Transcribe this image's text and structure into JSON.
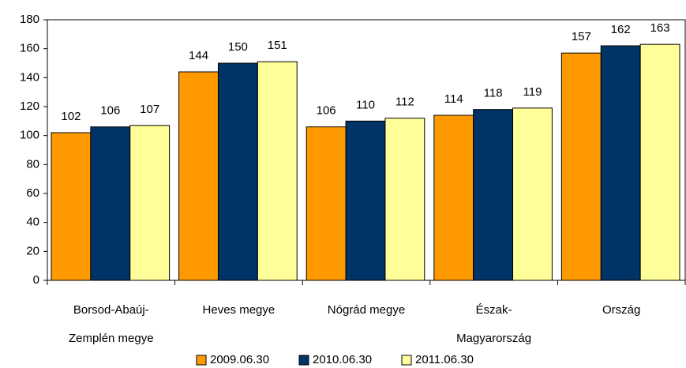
{
  "chart_data": {
    "type": "bar",
    "categories": [
      "Borsod-Abaúj-Zemplén megye",
      "Heves megye",
      "Nógrád megye",
      "Észak-Magyarország",
      "Ország"
    ],
    "series": [
      {
        "name": "2009.06.30",
        "color": "#ff9900",
        "values": [
          102,
          144,
          106,
          114,
          157
        ]
      },
      {
        "name": "2010.06.30",
        "color": "#003366",
        "values": [
          106,
          150,
          110,
          118,
          162
        ]
      },
      {
        "name": "2011.06.30",
        "color": "#ffff99",
        "values": [
          107,
          151,
          112,
          119,
          163
        ]
      }
    ],
    "ylim": [
      0,
      180
    ],
    "yticks": [
      0,
      20,
      40,
      60,
      80,
      100,
      120,
      140,
      160,
      180
    ],
    "grid": false
  }
}
